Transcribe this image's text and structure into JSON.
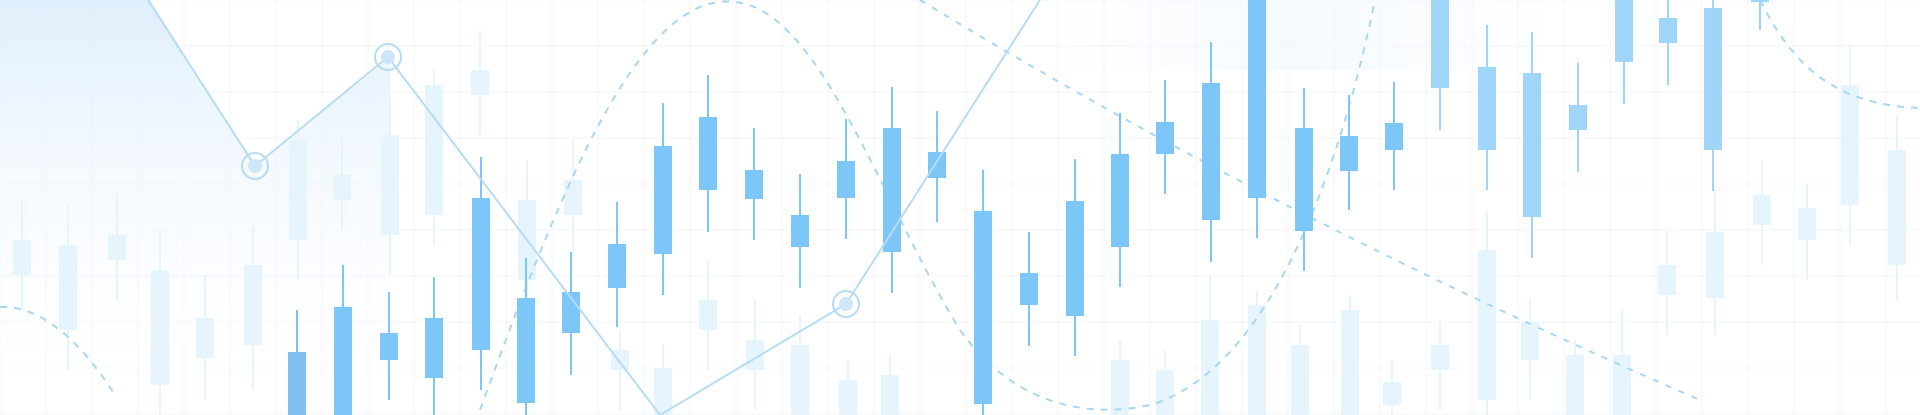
{
  "colors": {
    "background": "#ffffff",
    "candle_primary": "#7cc6f8",
    "candle_mid": "#9fd5f9",
    "candle_faint": "#e6f4fd",
    "grid": "#f1f6fa",
    "line": "#b6dcf3",
    "dashed_curve": "#a9d6f2",
    "area_fill": "#e8f3fd"
  },
  "icons": {
    "chart": "candlestick-chart-icon",
    "node": "data-node-icon"
  }
}
